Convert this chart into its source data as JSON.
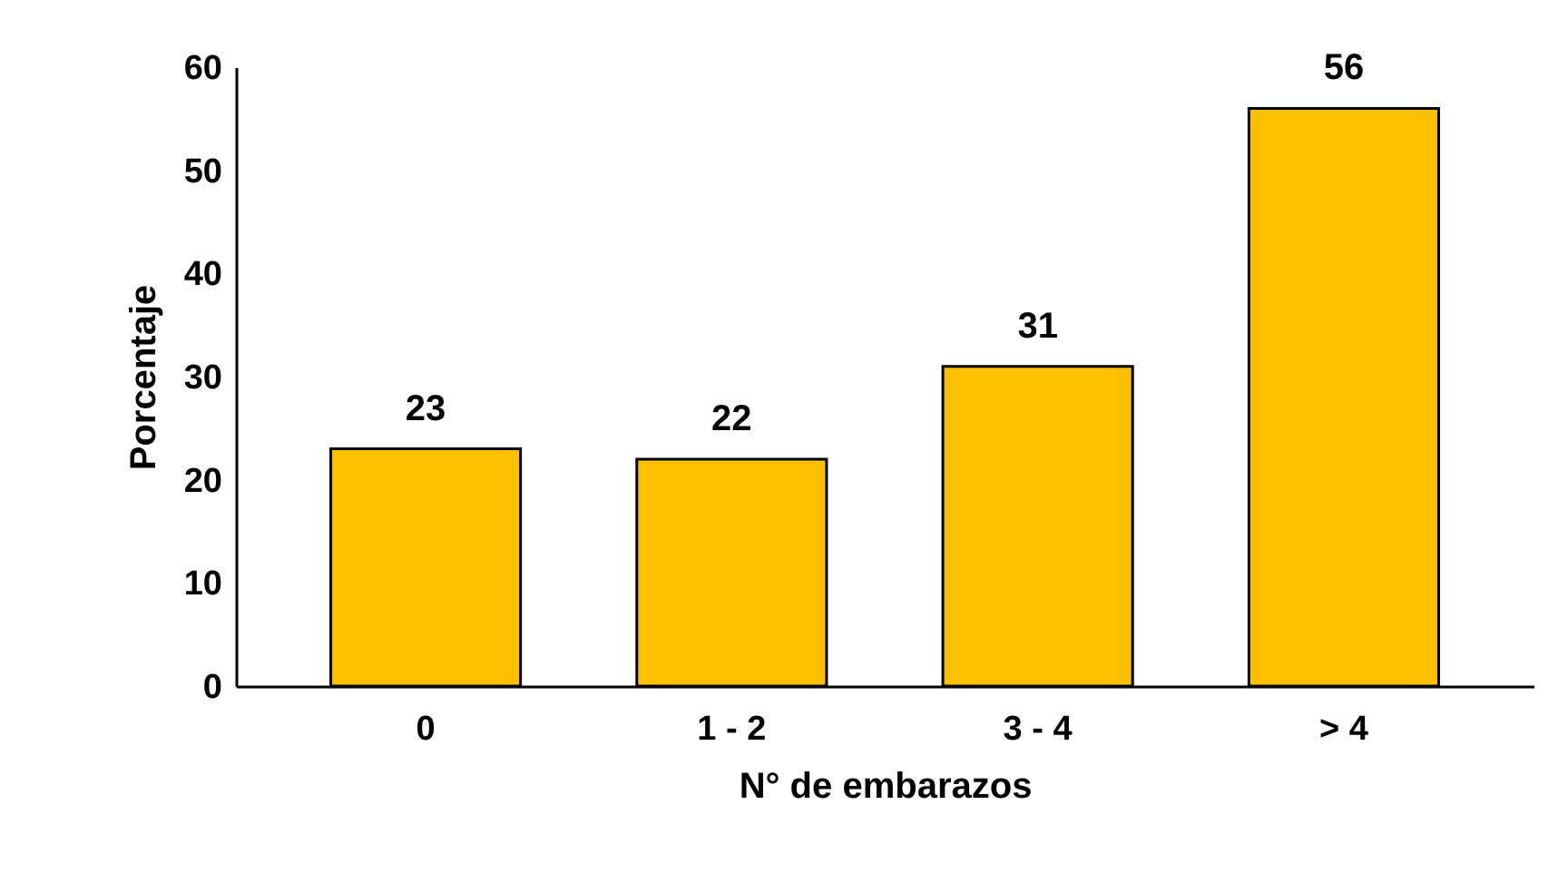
{
  "chart_data": {
    "type": "bar",
    "xlabel": "N° de embarazos",
    "ylabel": "Porcentaje",
    "categories": [
      "0",
      "1 - 2",
      "3 - 4",
      "> 4"
    ],
    "values": [
      23,
      22,
      31,
      56
    ],
    "color": "#ffc000",
    "ylim": [
      0,
      60
    ],
    "yticks": [
      0,
      10,
      20,
      30,
      40,
      50,
      60
    ],
    "grid": false,
    "data_labels": true
  }
}
